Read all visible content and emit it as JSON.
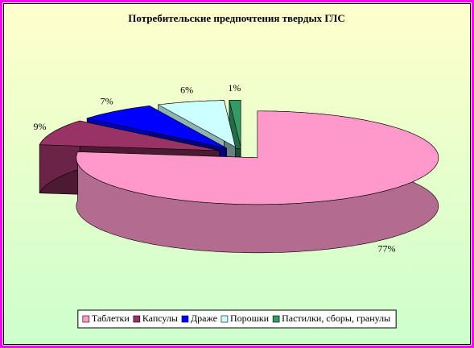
{
  "chart_data": {
    "type": "pie3d",
    "title": "Потребительские предпочтения твердых ГЛС",
    "categories": [
      "Таблетки",
      "Капсулы",
      "Драже",
      "Порошки",
      "Пастилки, сборы, гранулы"
    ],
    "values": [
      77,
      9,
      7,
      6,
      1
    ],
    "value_labels": [
      "77%",
      "9%",
      "7%",
      "6%",
      "1%"
    ],
    "colors": [
      "#ff99cc",
      "#993366",
      "#0000ff",
      "#ccffff",
      "#339966"
    ],
    "legend": "bottom"
  }
}
